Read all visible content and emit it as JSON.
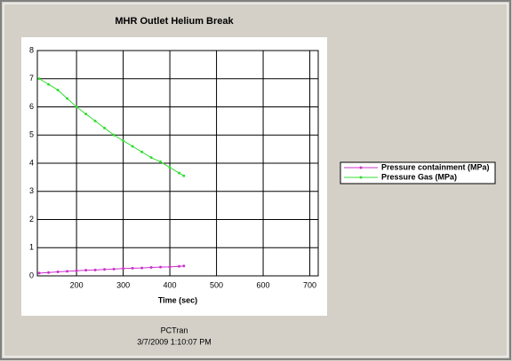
{
  "chart_data": {
    "type": "line",
    "title": "MHR Outlet Helium Break",
    "x_label": "Time (sec)",
    "footer": [
      "PCTran",
      "3/7/2009 1:10:07 PM"
    ],
    "x": [
      120,
      140,
      160,
      180,
      200,
      220,
      240,
      260,
      280,
      300,
      320,
      340,
      360,
      380,
      400,
      420,
      430
    ],
    "series": [
      {
        "name": "Pressure containment (MPa)",
        "color": "#cc33cc",
        "values": [
          0.1,
          0.12,
          0.14,
          0.16,
          0.18,
          0.2,
          0.21,
          0.23,
          0.24,
          0.26,
          0.27,
          0.28,
          0.3,
          0.31,
          0.32,
          0.34,
          0.35
        ]
      },
      {
        "name": "Pressure Gas (MPa)",
        "color": "#33dd33",
        "values": [
          7.0,
          6.8,
          6.6,
          6.3,
          6.0,
          5.75,
          5.5,
          5.25,
          5.0,
          4.8,
          4.6,
          4.4,
          4.2,
          4.05,
          3.85,
          3.65,
          3.55
        ]
      }
    ],
    "xlim": [
      116,
      718
    ],
    "xticks": [
      200,
      300,
      400,
      500,
      600,
      700
    ],
    "ylim": [
      0,
      8
    ],
    "yticks": [
      0,
      1,
      2,
      3,
      4,
      5,
      6,
      7,
      8
    ],
    "grid": true,
    "legend": "right"
  }
}
